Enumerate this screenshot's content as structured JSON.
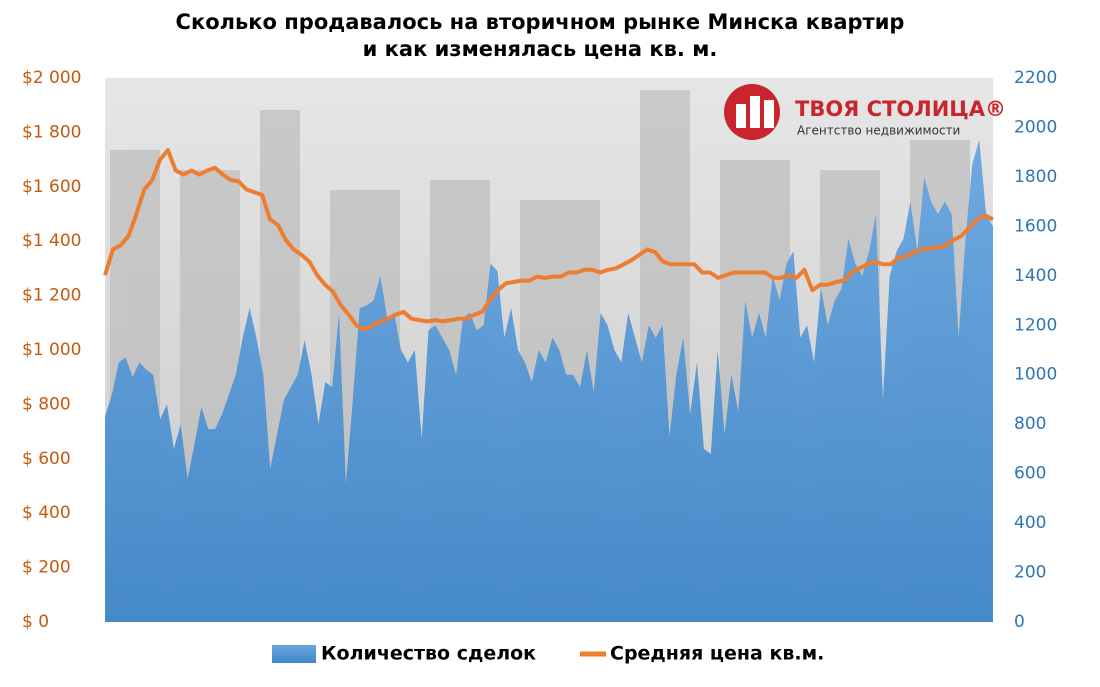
{
  "chart_data": {
    "type": "area-line",
    "title_lines": [
      "Сколько продавалось на вторичном рынке Минска квартир",
      "и как изменялась цена кв. м."
    ],
    "logo": {
      "name": "ТВОЯ СТОЛИЦА®",
      "tagline": "Агентство недвижимости"
    },
    "ylim": [
      0,
      2000
    ],
    "yticks": [
      {
        "value": 0,
        "label": "$ 0"
      },
      {
        "value": 200,
        "label": "$ 200"
      },
      {
        "value": 400,
        "label": "$ 400"
      },
      {
        "value": 600,
        "label": "$ 600"
      },
      {
        "value": 800,
        "label": "$ 800"
      },
      {
        "value": 1000,
        "label": "$1 000"
      },
      {
        "value": 1200,
        "label": "$1 200"
      },
      {
        "value": 1400,
        "label": "$1 400"
      },
      {
        "value": 1600,
        "label": "$1 600"
      },
      {
        "value": 1800,
        "label": "$1 800"
      },
      {
        "value": 2000,
        "label": "$2 000"
      }
    ],
    "y_color": "#c55a11",
    "y2lim": [
      0,
      2200
    ],
    "y2ticks": [
      0,
      200,
      400,
      600,
      800,
      1000,
      1200,
      1400,
      1600,
      1800,
      2000,
      2200
    ],
    "y2_color": "#2e75b6",
    "series": [
      {
        "name": "Количество сделок",
        "type": "area",
        "axis": "y2",
        "color": "#5b9bd5",
        "values": [
          830,
          920,
          1050,
          1070,
          990,
          1050,
          1020,
          1000,
          820,
          880,
          700,
          800,
          580,
          720,
          870,
          780,
          780,
          840,
          920,
          1000,
          1150,
          1270,
          1150,
          1000,
          620,
          760,
          900,
          950,
          1000,
          1140,
          1000,
          800,
          970,
          950,
          1250,
          560,
          900,
          1270,
          1280,
          1300,
          1400,
          1230,
          1250,
          1100,
          1050,
          1100,
          740,
          1180,
          1200,
          1150,
          1100,
          1000,
          1230,
          1250,
          1180,
          1200,
          1450,
          1420,
          1150,
          1270,
          1100,
          1050,
          970,
          1100,
          1050,
          1150,
          1100,
          1000,
          1000,
          950,
          1100,
          930,
          1250,
          1200,
          1100,
          1050,
          1250,
          1150,
          1050,
          1200,
          1150,
          1200,
          750,
          1000,
          1150,
          840,
          1050,
          700,
          680,
          1100,
          760,
          1000,
          850,
          1300,
          1150,
          1250,
          1150,
          1400,
          1300,
          1450,
          1500,
          1150,
          1200,
          1050,
          1350,
          1200,
          1300,
          1350,
          1550,
          1450,
          1400,
          1500,
          1650,
          900,
          1400,
          1500,
          1550,
          1700,
          1500,
          1800,
          1700,
          1650,
          1700,
          1650,
          1150,
          1550,
          1850,
          1950,
          1650,
          1600
        ]
      },
      {
        "name": "Средняя цена кв.м.",
        "type": "line",
        "axis": "y",
        "color": "#ed7d31",
        "values": [
          1275,
          1370,
          1385,
          1420,
          1500,
          1590,
          1625,
          1700,
          1735,
          1660,
          1645,
          1660,
          1645,
          1660,
          1670,
          1645,
          1625,
          1620,
          1590,
          1580,
          1570,
          1480,
          1460,
          1405,
          1370,
          1350,
          1325,
          1275,
          1240,
          1215,
          1165,
          1130,
          1090,
          1075,
          1090,
          1105,
          1115,
          1130,
          1140,
          1115,
          1110,
          1105,
          1110,
          1105,
          1110,
          1115,
          1115,
          1130,
          1140,
          1185,
          1220,
          1245,
          1250,
          1255,
          1255,
          1270,
          1265,
          1270,
          1270,
          1285,
          1285,
          1295,
          1295,
          1285,
          1295,
          1300,
          1315,
          1330,
          1350,
          1370,
          1360,
          1325,
          1315,
          1315,
          1315,
          1315,
          1285,
          1285,
          1265,
          1275,
          1285,
          1285,
          1285,
          1285,
          1285,
          1265,
          1265,
          1275,
          1265,
          1295,
          1220,
          1240,
          1240,
          1250,
          1255,
          1285,
          1300,
          1315,
          1325,
          1315,
          1315,
          1340,
          1345,
          1360,
          1370,
          1375,
          1375,
          1385,
          1405,
          1420,
          1450,
          1480,
          1495,
          1480
        ]
      }
    ]
  }
}
